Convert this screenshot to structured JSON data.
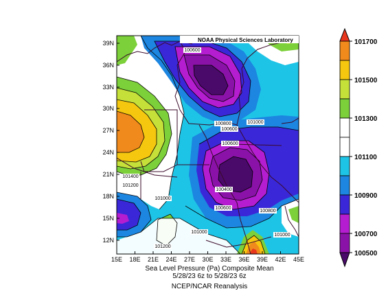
{
  "credit": "NOAA Physical Sciences Laboratory",
  "caption": {
    "line1": "Sea Level Pressure (Pa)   Composite Mean",
    "line2": "5/28/23 6z  to 5/28/23 6z",
    "line3": "NCEP/NCAR Reanalysis"
  },
  "lat_ticks": [
    "39N",
    "36N",
    "33N",
    "30N",
    "27N",
    "24N",
    "21N",
    "18N",
    "15N",
    "12N"
  ],
  "lon_ticks": [
    "15E",
    "18E",
    "21E",
    "24E",
    "27E",
    "30E",
    "33E",
    "36E",
    "39E",
    "42E",
    "45E"
  ],
  "contour_labels": [
    "100600",
    "100800",
    "100600",
    "101000",
    "100600",
    "101400",
    "101200",
    "100400",
    "101000",
    "100600",
    "100800",
    "101000",
    "101000",
    "101200"
  ],
  "colorbar": {
    "labels": [
      "101700",
      "101500",
      "101300",
      "101100",
      "100900",
      "100700",
      "100500"
    ],
    "colors": {
      "c101700": "#e8361c",
      "c101600": "#f08a1c",
      "c101500": "#f5c80f",
      "c101400": "#c6e03a",
      "c101300": "#7cd03a",
      "c101200": "#ffffff",
      "c101100": "#ffffff",
      "c101000": "#1ec4e6",
      "c100900": "#1c86e0",
      "c100800": "#3a28d8",
      "c100700": "#b41ed0",
      "c100600": "#8a12a8",
      "c100500": "#4a0a6a"
    }
  }
}
